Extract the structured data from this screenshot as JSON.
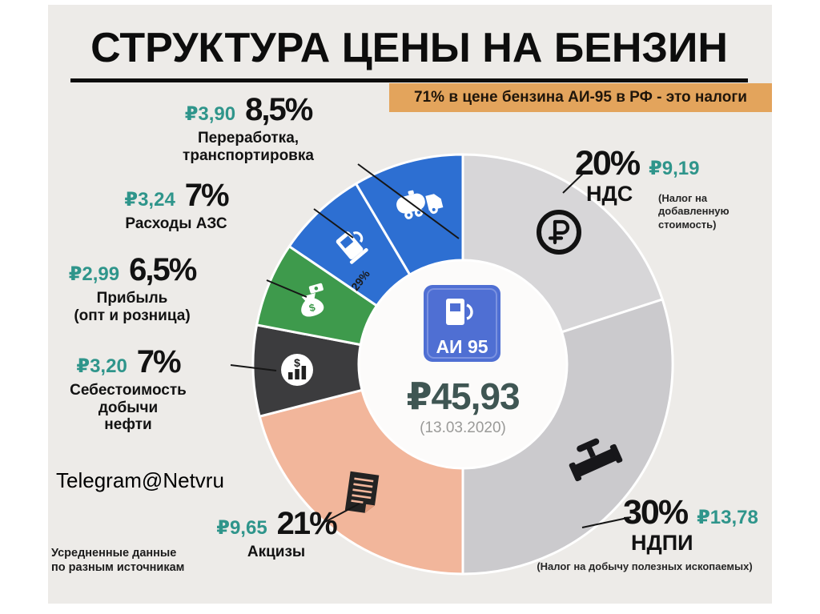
{
  "page": {
    "title": "СТРУКТУРА ЦЕНЫ НА БЕНЗИН",
    "banner": "71% в цене бензина АИ-95 в РФ - это налоги",
    "watermark": "Telegram@Netvru",
    "footnote": [
      "Усредненные данные",
      "по разным источникам"
    ]
  },
  "center": {
    "sign": "АИ 95",
    "price": "₽45,93",
    "date": "(13.03.2020)"
  },
  "chart_data": {
    "type": "pie",
    "title": "СТРУКТУРА ЦЕНЫ НА БЕНЗИН",
    "subtitle": "71% в цене бензина АИ-95 в РФ - это налоги",
    "total_label": "₽45,93",
    "total_rub": 45.93,
    "date": "13.03.2020",
    "direction": "clockwise",
    "start_angle_deg": 0,
    "inner_note": "29%",
    "segments": [
      {
        "key": "nds",
        "name": "НДС",
        "desc": "(Налог на добавленную стоимость)",
        "percent": 20,
        "percent_label": "20%",
        "amount": "₽9,19",
        "amount_rub": 9.19,
        "color": "#d7d6d8",
        "icon": "ruble-circle-icon"
      },
      {
        "key": "ndpi",
        "name": "НДПИ",
        "desc": "(Налог на добычу полезных ископаемых)",
        "percent": 30,
        "percent_label": "30%",
        "amount": "₽13,78",
        "amount_rub": 13.78,
        "color": "#cbcacd",
        "icon": "valve-icon"
      },
      {
        "key": "akcizy",
        "name": "Акцизы",
        "name_lines": [
          "Акцизы"
        ],
        "percent": 21,
        "percent_label": "21%",
        "amount": "₽9,65",
        "amount_rub": 9.65,
        "color": "#f2b69b",
        "icon": "excise-document-icon"
      },
      {
        "key": "sebestoimost",
        "name": "Себестоимость добычи нефти",
        "name_lines": [
          "Себестоимость",
          "добычи",
          "нефти"
        ],
        "percent": 7,
        "percent_label": "7%",
        "amount": "₽3,20",
        "amount_rub": 3.2,
        "color": "#3c3c3e",
        "icon": "dollar-chart-icon"
      },
      {
        "key": "pribyl",
        "name": "Прибыль (опт и розница)",
        "name_lines": [
          "Прибыль",
          "(опт и розница)"
        ],
        "percent": 6.5,
        "percent_label": "6,5%",
        "amount": "₽2,99",
        "amount_rub": 2.99,
        "color": "#3e9a4c",
        "icon": "money-bag-icon"
      },
      {
        "key": "azs",
        "name": "Расходы АЗС",
        "name_lines": [
          "Расходы АЗС"
        ],
        "percent": 7,
        "percent_label": "7%",
        "amount": "₽3,24",
        "amount_rub": 3.24,
        "color": "#2d6fd2",
        "icon": "fuel-pump-icon"
      },
      {
        "key": "pererabotka",
        "name": "Переработка, транспортировка",
        "name_lines": [
          "Переработка,",
          "транспортировка"
        ],
        "percent": 8.5,
        "percent_label": "8,5%",
        "amount": "₽3,90",
        "amount_rub": 3.9,
        "color": "#2d6fd2",
        "icon": "tanker-truck-icon"
      }
    ]
  }
}
